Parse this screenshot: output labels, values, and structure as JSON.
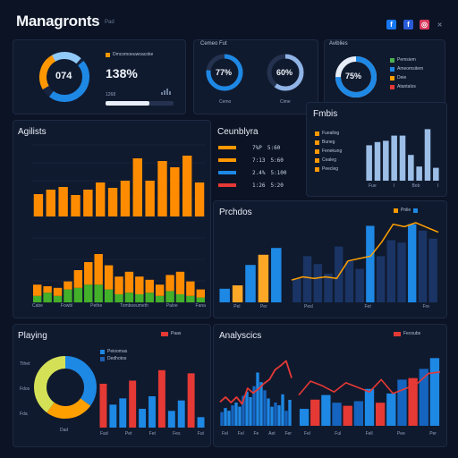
{
  "header": {
    "title": "Managronts",
    "tag": "Pad",
    "social": [
      {
        "name": "facebook-icon",
        "glyph": "f",
        "color": "#1877f2"
      },
      {
        "name": "facebook-alt-icon",
        "glyph": "f",
        "color": "#2a5bd7"
      },
      {
        "name": "instagram-icon",
        "glyph": "◎",
        "color": "#d9385c"
      },
      {
        "name": "close-icon",
        "glyph": "✕",
        "color": "#0b1324"
      }
    ]
  },
  "kpi": {
    "donut_value": "074",
    "big_value": "138%",
    "legend": "Dmcomoeuwoacoke",
    "small_value": "1268"
  },
  "gauges": {
    "title": "Cemeo Fut",
    "items": [
      {
        "value": "77%",
        "label": "Cemo",
        "fraction": 0.77
      },
      {
        "value": "60%",
        "label": "Cime",
        "fraction": 0.6
      }
    ]
  },
  "activities": {
    "title": "Aviblies",
    "value": "75%",
    "fraction": 0.75,
    "legend": [
      {
        "label": "Pemsiem",
        "color": "#4caf50"
      },
      {
        "label": "Ameomsitem",
        "color": "#1e88e5"
      },
      {
        "label": "Deie",
        "color": "#ffa000"
      },
      {
        "label": "Atantalos",
        "color": "#e53935"
      }
    ]
  },
  "agilists": {
    "title": "Agilists",
    "y_ticks": [
      "",
      "",
      "",
      "",
      ""
    ],
    "x_ticks": [
      "Cabe",
      "Fowbl",
      "Pethe",
      "Tomboeumeth",
      "Paloe",
      "Fana"
    ]
  },
  "countries": {
    "title": "Ceunblyra",
    "rows": [
      {
        "a": "7%P",
        "b": "5:60",
        "color": "#ff9800"
      },
      {
        "a": "7:13",
        "b": "5:60",
        "color": "#ff9800"
      },
      {
        "a": "2.4%",
        "b": "5:100",
        "color": "#1e88e5"
      },
      {
        "a": "1:26",
        "b": "5:20",
        "color": "#e53935"
      }
    ]
  },
  "fimbis": {
    "title": "Fmbis",
    "legend": [
      {
        "label": "Fueallog",
        "color": "#ff9800"
      },
      {
        "label": "Buneg",
        "color": "#ff9800"
      },
      {
        "label": "Fenekung",
        "color": "#ff9800"
      },
      {
        "label": "Cealeg",
        "color": "#ff9800"
      },
      {
        "label": "Peecleg",
        "color": "#ff9800"
      }
    ],
    "x_ticks": [
      "Fue",
      "I",
      "Bob",
      "I"
    ]
  },
  "products": {
    "title": "Prchdos",
    "legend": "Pnlie",
    "x_ticks_left": [
      "Pel",
      "Per"
    ],
    "x_ticks_right": [
      "Pesl",
      "Fet",
      "Fre"
    ]
  },
  "playings": {
    "title": "Playing",
    "legend_tag": "Paas",
    "legend": [
      {
        "label": "Peioomas",
        "color": "#1e88e5"
      },
      {
        "label": "Dedhotos",
        "color": "#1e5fb0"
      }
    ],
    "y_ticks": [
      "Tthet",
      "Fdos",
      "Fda"
    ],
    "x_ticks": [
      "Fad",
      "Pet",
      "Fet",
      "Fes",
      "Fut"
    ],
    "donut_label": "Dad"
  },
  "analytics": {
    "title": "Analyscics",
    "legend": "Fecoubs",
    "x_ticks": [
      "Fel",
      "Fel",
      "Fe",
      "Aet",
      "Fer"
    ],
    "x_ticks_right": [
      "Fel",
      "Ful",
      "Fell",
      "Pee",
      "Per"
    ]
  },
  "chart_data": [
    {
      "type": "bar",
      "title": "Agilists",
      "series": [
        {
          "values": [
            25,
            30,
            33,
            24,
            30,
            38,
            32,
            40,
            65,
            40,
            62,
            55,
            68,
            38
          ]
        }
      ],
      "ylim": [
        0,
        80
      ]
    },
    {
      "type": "bar",
      "title": "Agilists (stacked)",
      "series": [
        {
          "name": "green",
          "values": [
            8,
            12,
            8,
            16,
            18,
            22,
            22,
            16,
            10,
            12,
            10,
            12,
            8,
            14,
            10,
            8,
            6
          ]
        },
        {
          "name": "orange",
          "values": [
            14,
            8,
            10,
            10,
            22,
            28,
            38,
            30,
            22,
            26,
            22,
            16,
            14,
            20,
            28,
            18,
            10
          ]
        }
      ],
      "ylim": [
        0,
        80
      ]
    },
    {
      "type": "bar",
      "title": "Fmbis",
      "values": [
        55,
        60,
        62,
        70,
        70,
        40,
        22,
        80,
        20
      ],
      "ylim": [
        0,
        100
      ]
    },
    {
      "type": "bar",
      "title": "Prchdos",
      "values": [
        20,
        25,
        55,
        70,
        80
      ],
      "ylim": [
        0,
        100
      ]
    },
    {
      "type": "line",
      "title": "Prchdos trend",
      "values": [
        28,
        32,
        30,
        32,
        30,
        52,
        55,
        58,
        76,
        98,
        95,
        100,
        94,
        88
      ],
      "bars": [
        30,
        58,
        48,
        36,
        70,
        52,
        42,
        96,
        58,
        78,
        75,
        98,
        90,
        80
      ],
      "ylim": [
        0,
        110
      ]
    },
    {
      "type": "pie",
      "title": "Playing",
      "values": [
        35,
        25,
        40
      ]
    },
    {
      "type": "bar",
      "title": "Playing",
      "series": [
        {
          "name": "red",
          "values": [
            42,
            0,
            0,
            45,
            0,
            0,
            55,
            0,
            0,
            52,
            0
          ]
        },
        {
          "name": "blue",
          "values": [
            0,
            22,
            28,
            0,
            18,
            30,
            0,
            16,
            26,
            0,
            10
          ]
        }
      ],
      "ylim": [
        0,
        60
      ]
    },
    {
      "type": "bar",
      "title": "Analyscics",
      "values": [
        20,
        26,
        22,
        30,
        34,
        28,
        44,
        50,
        42,
        58,
        78,
        64,
        52,
        40,
        28,
        34,
        30,
        46,
        22,
        38
      ],
      "line": [
        35,
        42,
        34,
        42,
        32,
        55,
        48,
        54,
        62,
        68,
        82,
        88,
        95,
        70
      ],
      "ylim": [
        0,
        110
      ]
    },
    {
      "type": "bar",
      "title": "Analyscics right",
      "values": [
        22,
        34,
        40,
        30,
        26,
        32,
        48,
        30,
        42,
        60,
        62,
        74,
        88
      ],
      "highlight": [
        false,
        true,
        false,
        false,
        true,
        false,
        false,
        true,
        false,
        false,
        true,
        false,
        false
      ],
      "line": [
        40,
        58,
        52,
        44,
        56,
        50,
        44,
        60,
        42,
        48,
        54,
        68,
        70
      ],
      "ylim": [
        0,
        100
      ]
    }
  ]
}
